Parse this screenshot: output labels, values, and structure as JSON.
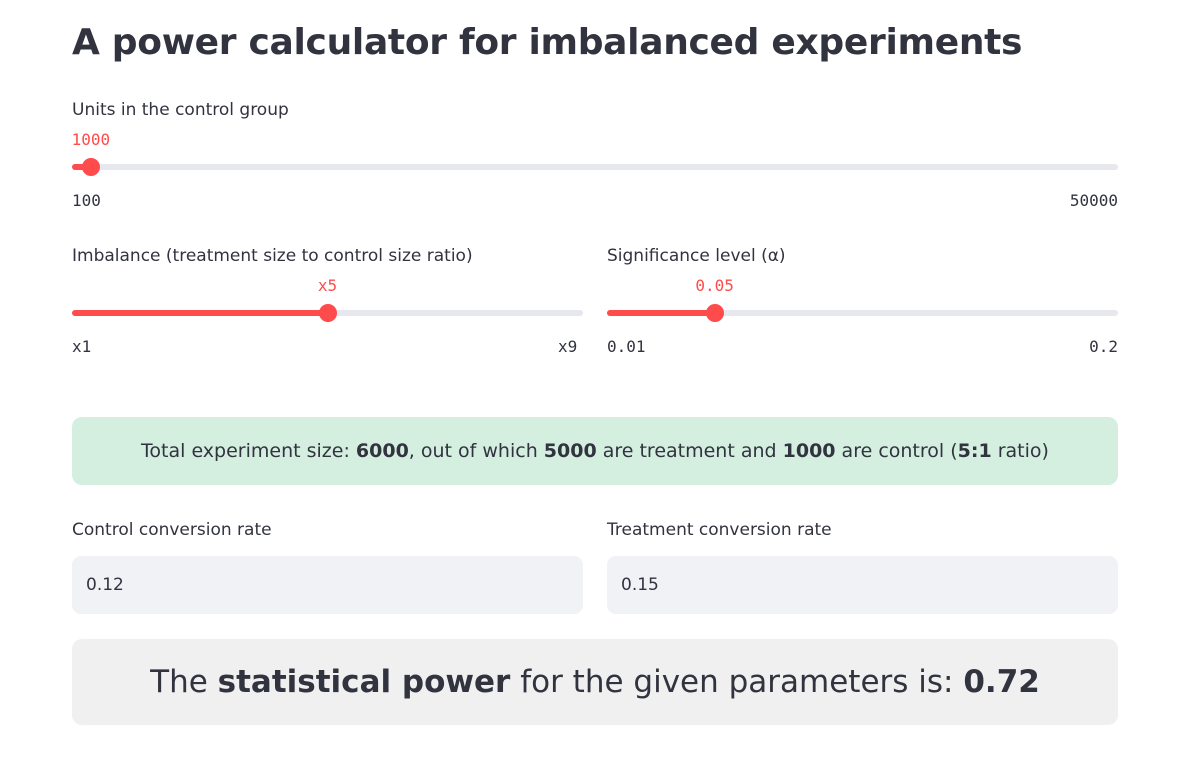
{
  "page": {
    "title": "A power calculator for imbalanced experiments"
  },
  "control_units_slider": {
    "label": "Units in the control group",
    "value": 1000,
    "value_text": "1000",
    "min": 100,
    "max": 50000,
    "min_text": "100",
    "max_text": "50000"
  },
  "imbalance_slider": {
    "label": "Imbalance (treatment size to control size ratio)",
    "value": 5,
    "value_text": "x5",
    "min": 1,
    "max": 9,
    "min_text": "x1",
    "max_text": "x9"
  },
  "significance_slider": {
    "label": "Significance level (α)",
    "value": 0.05,
    "value_text": "0.05",
    "min": 0.01,
    "max": 0.2,
    "min_text": "0.01",
    "max_text": "0.2"
  },
  "summary": {
    "prefix": "Total experiment size: ",
    "total": "6000",
    "mid1": ", out of which ",
    "treatment": "5000",
    "mid2": " are treatment and ",
    "control": "1000",
    "mid3": " are control (",
    "ratio": "5:1",
    "suffix": " ratio)"
  },
  "control_rate_input": {
    "label": "Control conversion rate",
    "value": "0.12"
  },
  "treatment_rate_input": {
    "label": "Treatment conversion rate",
    "value": "0.15"
  },
  "result": {
    "prefix": "The ",
    "emphasis": "statistical power",
    "mid": " for the given parameters is: ",
    "value": "0.72"
  },
  "colors": {
    "accent": "#ff4b4b",
    "track": "#e6e8ee",
    "success_bg": "#d4eee0",
    "input_bg": "#f0f2f6",
    "result_bg": "#f0f0f0",
    "text": "#31333f"
  }
}
